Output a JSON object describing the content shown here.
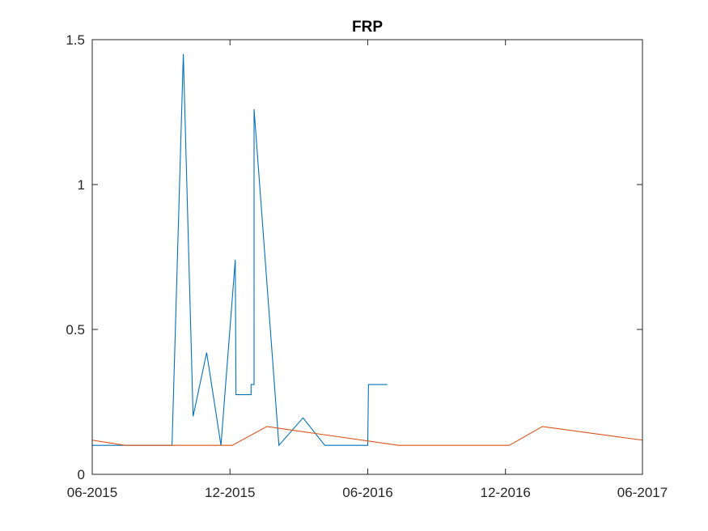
{
  "chart_data": {
    "type": "line",
    "title": "FRP",
    "xlabel": "",
    "ylabel": "",
    "xlim": [
      "2015-06-01",
      "2017-06-01"
    ],
    "ylim": [
      0,
      1.5
    ],
    "x_ticks": [
      "2015-06-01",
      "2015-12-01",
      "2016-06-01",
      "2016-12-01",
      "2017-06-01"
    ],
    "x_tick_labels": [
      "06-2015",
      "12-2015",
      "06-2016",
      "12-2016",
      "06-2017"
    ],
    "y_ticks": [
      0,
      0.5,
      1,
      1.5
    ],
    "y_tick_labels": [
      "0",
      "0.5",
      "1",
      "1.5"
    ],
    "grid": false,
    "series": [
      {
        "color": "#0072BD",
        "points": [
          {
            "x": "2015-06-01",
            "y": 0.1
          },
          {
            "x": "2015-06-15",
            "y": 0.1
          },
          {
            "x": "2015-07-01",
            "y": 0.1
          },
          {
            "x": "2015-08-01",
            "y": 0.1
          },
          {
            "x": "2015-09-01",
            "y": 0.1
          },
          {
            "x": "2015-09-15",
            "y": 0.1
          },
          {
            "x": "2015-09-30",
            "y": 1.45
          },
          {
            "x": "2015-10-13",
            "y": 0.2
          },
          {
            "x": "2015-10-31",
            "y": 0.42
          },
          {
            "x": "2015-11-19",
            "y": 0.1
          },
          {
            "x": "2015-12-08",
            "y": 0.74
          },
          {
            "x": "2015-12-09",
            "y": 0.275
          },
          {
            "x": "2015-12-29",
            "y": 0.275
          },
          {
            "x": "2015-12-29",
            "y": 0.31
          },
          {
            "x": "2016-01-02",
            "y": 0.31
          },
          {
            "x": "2016-01-02",
            "y": 1.26
          },
          {
            "x": "2016-02-04",
            "y": 0.1
          },
          {
            "x": "2016-03-07",
            "y": 0.195
          },
          {
            "x": "2016-04-05",
            "y": 0.1
          },
          {
            "x": "2016-06-01",
            "y": 0.1
          },
          {
            "x": "2016-06-02",
            "y": 0.31
          },
          {
            "x": "2016-06-27",
            "y": 0.31
          }
        ]
      },
      {
        "color": "#D95319",
        "points": [
          {
            "x": "2015-06-01",
            "y": 0.118
          },
          {
            "x": "2015-07-15",
            "y": 0.1
          },
          {
            "x": "2015-12-04",
            "y": 0.1
          },
          {
            "x": "2016-01-19",
            "y": 0.165
          },
          {
            "x": "2016-07-12",
            "y": 0.1
          },
          {
            "x": "2016-12-06",
            "y": 0.1
          },
          {
            "x": "2017-01-19",
            "y": 0.165
          },
          {
            "x": "2017-06-01",
            "y": 0.118
          }
        ]
      }
    ]
  }
}
